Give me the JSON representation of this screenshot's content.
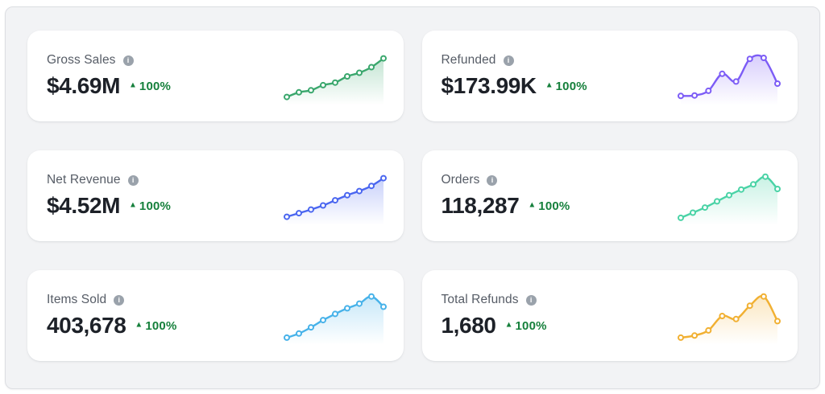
{
  "panel": {
    "background": "#f2f3f5",
    "border_color": "#dcdee2"
  },
  "icons": {
    "info_glyph": "i",
    "up_triangle": "▲"
  },
  "badge": {
    "color": "#16803c"
  },
  "cards": [
    {
      "title": "Gross Sales",
      "value": "$4.69M",
      "change": "100%",
      "trend": "up"
    },
    {
      "title": "Refunded",
      "value": "$173.99K",
      "change": "100%",
      "trend": "up"
    },
    {
      "title": "Net Revenue",
      "value": "$4.52M",
      "change": "100%",
      "trend": "up"
    },
    {
      "title": "Orders",
      "value": "118,287",
      "change": "100%",
      "trend": "up"
    },
    {
      "title": "Items Sold",
      "value": "403,678",
      "change": "100%",
      "trend": "up"
    },
    {
      "title": "Total Refunds",
      "value": "1,680",
      "change": "100%",
      "trend": "up"
    }
  ],
  "chart_data": [
    {
      "type": "line",
      "title": "Gross Sales trend sparkline",
      "color": "#3aa76d",
      "x": [
        1,
        2,
        3,
        4,
        5,
        6,
        7,
        8,
        9
      ],
      "values": [
        10,
        19,
        23,
        33,
        38,
        50,
        57,
        68,
        85
      ],
      "ylim": [
        0,
        100
      ],
      "axes_visible": false,
      "legend": "none"
    },
    {
      "type": "line",
      "title": "Refunded trend sparkline",
      "color": "#7c5cf6",
      "x": [
        1,
        2,
        3,
        4,
        5,
        6,
        7,
        8
      ],
      "values": [
        12,
        13,
        22,
        55,
        40,
        84,
        86,
        36
      ],
      "ylim": [
        0,
        100
      ],
      "axes_visible": false,
      "legend": "none"
    },
    {
      "type": "line",
      "title": "Net Revenue trend sparkline",
      "color": "#4a66f0",
      "x": [
        1,
        2,
        3,
        4,
        5,
        6,
        7,
        8,
        9
      ],
      "values": [
        10,
        17,
        24,
        32,
        42,
        52,
        60,
        70,
        85
      ],
      "ylim": [
        0,
        100
      ],
      "axes_visible": false,
      "legend": "none"
    },
    {
      "type": "line",
      "title": "Orders trend sparkline",
      "color": "#4ad3a6",
      "x": [
        1,
        2,
        3,
        4,
        5,
        6,
        7,
        8,
        9
      ],
      "values": [
        8,
        18,
        28,
        40,
        52,
        63,
        73,
        88,
        64
      ],
      "ylim": [
        0,
        100
      ],
      "axes_visible": false,
      "legend": "none"
    },
    {
      "type": "line",
      "title": "Items Sold trend sparkline",
      "color": "#47b2e9",
      "x": [
        1,
        2,
        3,
        4,
        5,
        6,
        7,
        8,
        9
      ],
      "values": [
        8,
        16,
        28,
        42,
        54,
        65,
        74,
        88,
        68
      ],
      "ylim": [
        0,
        100
      ],
      "axes_visible": false,
      "legend": "none"
    },
    {
      "type": "line",
      "title": "Total Refunds trend sparkline",
      "color": "#f1b032",
      "x": [
        1,
        2,
        3,
        4,
        5,
        6,
        7,
        8
      ],
      "values": [
        8,
        12,
        22,
        50,
        44,
        70,
        88,
        40
      ],
      "ylim": [
        0,
        100
      ],
      "axes_visible": false,
      "legend": "none"
    }
  ]
}
